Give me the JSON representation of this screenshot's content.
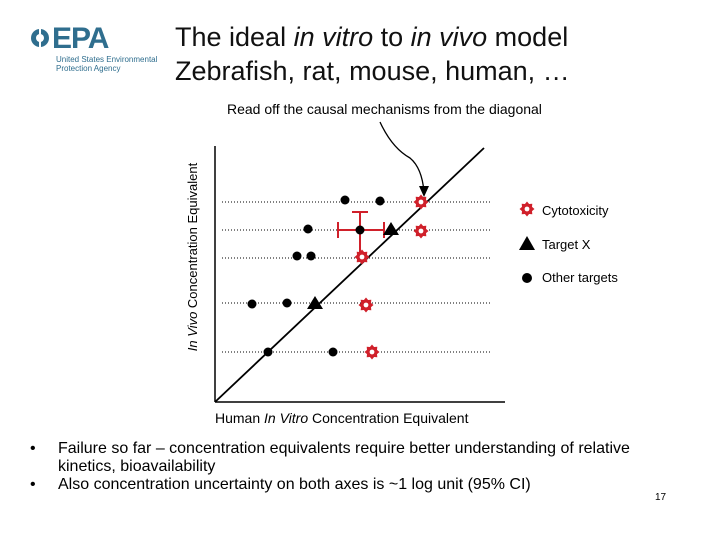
{
  "logo": {
    "wordmark": "EPA",
    "agency_name": "United States Environmental Protection Agency"
  },
  "title": {
    "line1_a": "The ideal ",
    "line1_b": "in vitro",
    "line1_c": " to ",
    "line1_d": "in vivo",
    "line1_e": " model",
    "line2": "Zebrafish, rat, mouse, human, …"
  },
  "annotation": "Read off the causal mechanisms from the diagonal",
  "axes": {
    "y_italic": "In Vivo",
    "y_rest": " Concentration Equivalent",
    "x_pre": "Human ",
    "x_italic": "In Vitro",
    "x_post": " Concentration Equivalent"
  },
  "legend": {
    "cytotoxicity": "Cytotoxicity",
    "target_x": "Target X",
    "other_targets": "Other targets"
  },
  "bullets": [
    "Failure so far – concentration equivalents require better understanding of relative kinetics, bioavailability",
    "Also concentration uncertainty on both axes is ~1 log unit (95% CI)"
  ],
  "bullet_symbol": "•",
  "page_number": "17",
  "colors": {
    "logo": "#2f6e8e",
    "cytotoxicity_marker": "#d0202a",
    "other_marker": "#000000"
  }
}
